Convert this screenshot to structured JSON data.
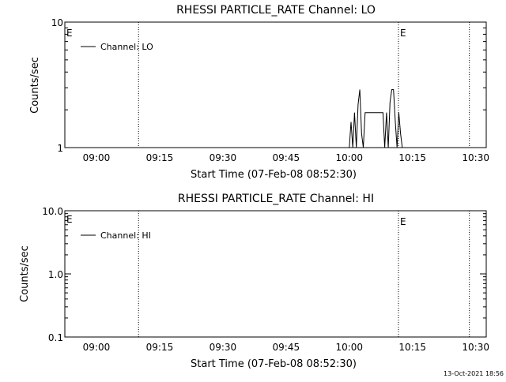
{
  "timestamp": "13-Oct-2021 18:56",
  "chart_data": [
    {
      "type": "line",
      "title": "RHESSI PARTICLE_RATE Channel: LO",
      "xlabel": "Start Time (07-Feb-08 08:52:30)",
      "ylabel": "Counts/sec",
      "yscale": "log",
      "ylim": [
        1,
        10
      ],
      "yticks": [
        {
          "value": 1,
          "label": "1"
        },
        {
          "value": 10,
          "label": "10"
        }
      ],
      "xlim": [
        "08:52:30",
        "10:32:30"
      ],
      "xticks": [
        "09:00",
        "09:15",
        "09:30",
        "09:45",
        "10:00",
        "10:15",
        "10:30"
      ],
      "legend": {
        "label": "Channel: LO",
        "position": "top-left"
      },
      "event_markers": [
        {
          "time": "09:10:00",
          "label": ""
        },
        {
          "time": "10:11:40",
          "label": "E"
        },
        {
          "time": "10:28:30",
          "label": ""
        }
      ],
      "corner_label": "E",
      "series": [
        {
          "name": "Channel: LO",
          "x": [
            "08:52:30",
            "10:00:00",
            "10:00:25",
            "10:00:50",
            "10:01:15",
            "10:01:40",
            "10:02:05",
            "10:02:30",
            "10:02:55",
            "10:03:20",
            "10:03:45",
            "10:04:10",
            "10:04:35",
            "10:05:00",
            "10:05:25",
            "10:05:50",
            "10:08:00",
            "10:08:25",
            "10:08:50",
            "10:09:15",
            "10:09:40",
            "10:10:05",
            "10:10:30",
            "10:10:55",
            "10:11:20",
            "10:11:45",
            "10:12:10",
            "10:12:35",
            "10:13:00",
            "10:32:30"
          ],
          "y": [
            1,
            1,
            1.6,
            1,
            1.9,
            1,
            2.2,
            2.9,
            1.3,
            1,
            1.9,
            1.9,
            1.9,
            1.9,
            1.9,
            1.9,
            1.9,
            1,
            1.9,
            1,
            2.3,
            2.9,
            2.9,
            1.6,
            1,
            1.9,
            1.3,
            1,
            1,
            1
          ]
        }
      ]
    },
    {
      "type": "line",
      "title": "RHESSI PARTICLE_RATE Channel: HI",
      "xlabel": "Start Time (07-Feb-08 08:52:30)",
      "ylabel": "Counts/sec",
      "yscale": "log",
      "ylim": [
        0.1,
        10
      ],
      "yticks": [
        {
          "value": 0.1,
          "label": "0.1"
        },
        {
          "value": 1,
          "label": "1.0"
        },
        {
          "value": 10,
          "label": "10.0"
        }
      ],
      "xlim": [
        "08:52:30",
        "10:32:30"
      ],
      "xticks": [
        "09:00",
        "09:15",
        "09:30",
        "09:45",
        "10:00",
        "10:15",
        "10:30"
      ],
      "legend": {
        "label": "Channel: HI",
        "position": "top-left"
      },
      "event_markers": [
        {
          "time": "09:10:00",
          "label": ""
        },
        {
          "time": "10:11:40",
          "label": "E"
        },
        {
          "time": "10:28:30",
          "label": ""
        }
      ],
      "corner_label": "E",
      "series": [
        {
          "name": "Channel: HI",
          "x": [],
          "y": []
        }
      ]
    }
  ]
}
